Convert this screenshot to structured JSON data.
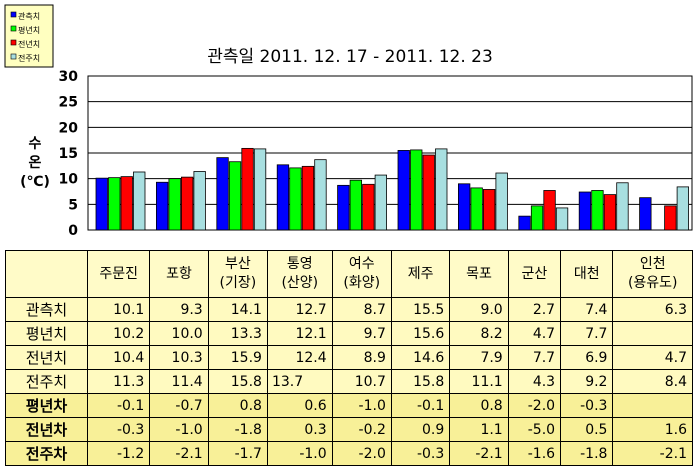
{
  "chart_data": {
    "type": "bar",
    "title": "관측일 2011. 12. 17  -  2011. 12. 23",
    "ylabel": [
      "수",
      "온",
      "(℃)"
    ],
    "ylim": [
      0,
      30
    ],
    "yticks": [
      0,
      5,
      10,
      15,
      20,
      25,
      30
    ],
    "grid": true,
    "legend_placement": "top-left",
    "categories": [
      "주문진",
      "포항",
      "부산(기장)",
      "통영(산양)",
      "여수(화양)",
      "제주",
      "목포",
      "군산",
      "대천",
      "인천(용유도)"
    ],
    "series": [
      {
        "name": "관측치",
        "color": "#0000ff",
        "values": [
          10.1,
          9.3,
          14.1,
          12.7,
          8.7,
          15.5,
          9.0,
          2.7,
          7.4,
          6.3
        ]
      },
      {
        "name": "평년치",
        "color": "#00ff00",
        "values": [
          10.2,
          10.0,
          13.3,
          12.1,
          9.7,
          15.6,
          8.2,
          4.7,
          7.7,
          null
        ]
      },
      {
        "name": "전년치",
        "color": "#ff0000",
        "values": [
          10.4,
          10.3,
          15.9,
          12.4,
          8.9,
          14.6,
          7.9,
          7.7,
          6.9,
          4.7
        ]
      },
      {
        "name": "전주치",
        "color": "#a8dfe0",
        "values": [
          11.3,
          11.4,
          15.8,
          13.7,
          10.7,
          15.8,
          11.1,
          4.3,
          9.2,
          8.4
        ]
      }
    ]
  },
  "table": {
    "headers": [
      [
        "주문진"
      ],
      [
        "포항"
      ],
      [
        "부산",
        "(기장)"
      ],
      [
        "통영",
        "(산양)"
      ],
      [
        "여수",
        "(화양)"
      ],
      [
        "제주"
      ],
      [
        "목포"
      ],
      [
        "군산"
      ],
      [
        "대천"
      ],
      [
        "인천",
        "(용유도)"
      ]
    ],
    "rows": [
      {
        "label": "관측치",
        "diff": false,
        "cells": [
          "10.1",
          "9.3",
          "14.1",
          "12.7",
          "8.7",
          "15.5",
          "9.0",
          "2.7",
          "7.4",
          "6.3"
        ]
      },
      {
        "label": "평년치",
        "diff": false,
        "cells": [
          "10.2",
          "10.0",
          "13.3",
          "12.1",
          "9.7",
          "15.6",
          "8.2",
          "4.7",
          "7.7",
          ""
        ]
      },
      {
        "label": "전년치",
        "diff": false,
        "cells": [
          "10.4",
          "10.3",
          "15.9",
          "12.4",
          "8.9",
          "14.6",
          "7.9",
          "7.7",
          "6.9",
          "4.7"
        ]
      },
      {
        "label": "전주치",
        "diff": false,
        "cells": [
          "11.3",
          "11.4",
          "15.8",
          "13.7",
          "10.7",
          "15.8",
          "11.1",
          "4.3",
          "9.2",
          "8.4"
        ]
      },
      {
        "label": "평년차",
        "diff": true,
        "cells": [
          "-0.1",
          "-0.7",
          "0.8",
          "0.6",
          "-1.0",
          "-0.1",
          "0.8",
          "-2.0",
          "-0.3",
          ""
        ]
      },
      {
        "label": "전년차",
        "diff": true,
        "cells": [
          "-0.3",
          "-1.0",
          "-1.8",
          "0.3",
          "-0.2",
          "0.9",
          "1.1",
          "-5.0",
          "0.5",
          "1.6"
        ]
      },
      {
        "label": "전주차",
        "diff": true,
        "cells": [
          "-1.2",
          "-2.1",
          "-1.7",
          "-1.0",
          "-2.0",
          "-0.3",
          "-2.1",
          "-1.6",
          "-1.8",
          "-2.1"
        ]
      }
    ]
  }
}
